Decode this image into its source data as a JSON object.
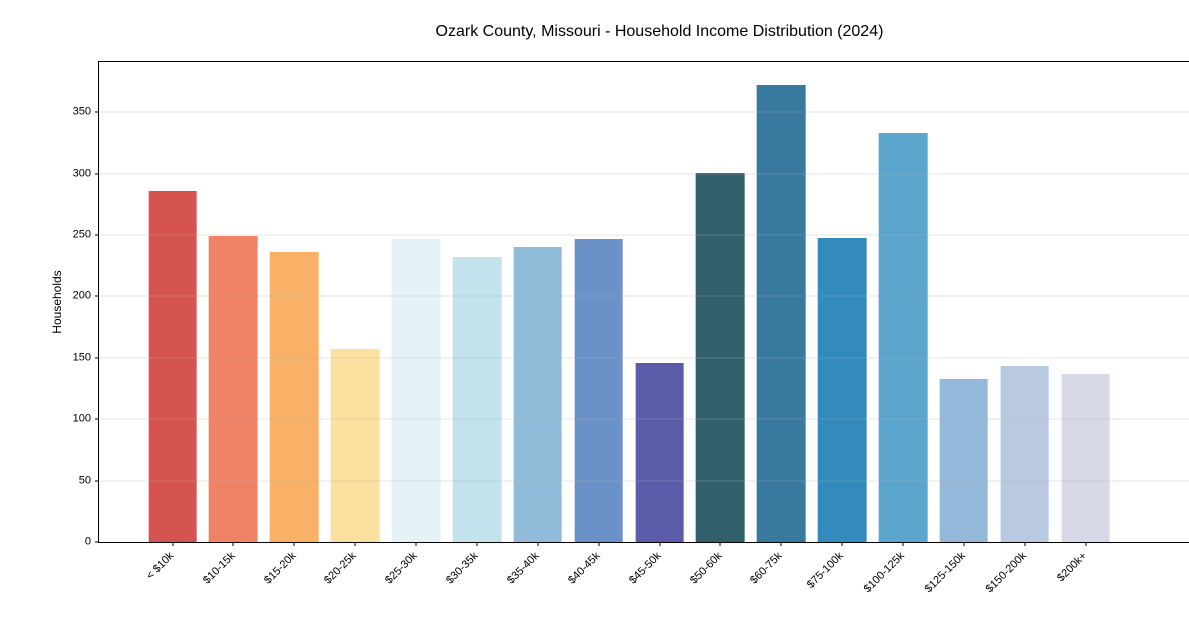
{
  "chart_data": {
    "type": "bar",
    "title": "Ozark County, Missouri - Household Income Distribution (2024)",
    "xlabel": "",
    "ylabel": "Households",
    "categories": [
      "< $10k",
      "$10-15k",
      "$15-20k",
      "$20-25k",
      "$25-30k",
      "$30-35k",
      "$35-40k",
      "$40-45k",
      "$45-50k",
      "$50-60k",
      "$60-75k",
      "$75-100k",
      "$100-125k",
      "$125-150k",
      "$150-200k",
      "$200k+"
    ],
    "values": [
      286,
      249,
      236,
      157,
      247,
      232,
      240,
      247,
      146,
      301,
      372,
      248,
      333,
      133,
      143,
      137
    ],
    "bar_colors": [
      "#d6544f",
      "#f08365",
      "#f9b168",
      "#fce0a0",
      "#e5f2f6",
      "#c3e2ec",
      "#91bcd9",
      "#6b92c8",
      "#5b5baa",
      "#33606d",
      "#377a9e",
      "#338abc",
      "#5ca5cd",
      "#93b8da",
      "#bac9e2",
      "#d8d9e8"
    ],
    "yticks": [
      0,
      50,
      100,
      150,
      200,
      250,
      300,
      350
    ],
    "ylim": [
      0,
      391
    ],
    "grid": "horizontal",
    "grid_above_bars": true,
    "legend": "none",
    "frame": "full-box"
  }
}
